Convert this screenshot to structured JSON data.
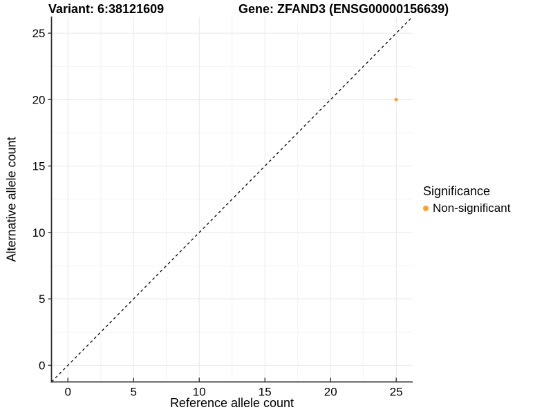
{
  "header": {
    "variant_title": "Variant: 6:38121609",
    "gene_title": "Gene: ZFAND3 (ENSG00000156639)"
  },
  "legend": {
    "title": "Significance",
    "items": [
      {
        "label": "Non-significant",
        "color": "#FBA22B"
      }
    ]
  },
  "colors": {
    "background": "#FFFFFF",
    "grid_major": "#E8E8E8",
    "grid_minor": "#F3F3F3",
    "axis_line": "#333333",
    "tick_mark": "#333333",
    "tick_label": "#000000",
    "identity_line": "#000000",
    "point": "#FBA22B"
  },
  "chart_data": {
    "type": "scatter",
    "title": "Variant: 6:38121609   Gene: ZFAND3 (ENSG00000156639)",
    "xlabel": "Reference allele count",
    "ylabel": "Alternative allele count",
    "xlim": [
      -1.25,
      26.25
    ],
    "ylim": [
      -1.25,
      26.25
    ],
    "xticks": [
      0,
      5,
      10,
      15,
      20,
      25
    ],
    "yticks": [
      0,
      5,
      10,
      15,
      20,
      25
    ],
    "minor_ticks": [
      2.5,
      7.5,
      12.5,
      17.5,
      22.5
    ],
    "grid": true,
    "legend_position": "right",
    "legend_title": "Significance",
    "series": [
      {
        "name": "Non-significant",
        "color": "#FBA22B",
        "points": [
          {
            "x": 25,
            "y": 20
          }
        ]
      }
    ],
    "reference_line": {
      "kind": "identity",
      "slope": 1,
      "intercept": 0,
      "style": "dashed",
      "color": "#000000"
    }
  }
}
